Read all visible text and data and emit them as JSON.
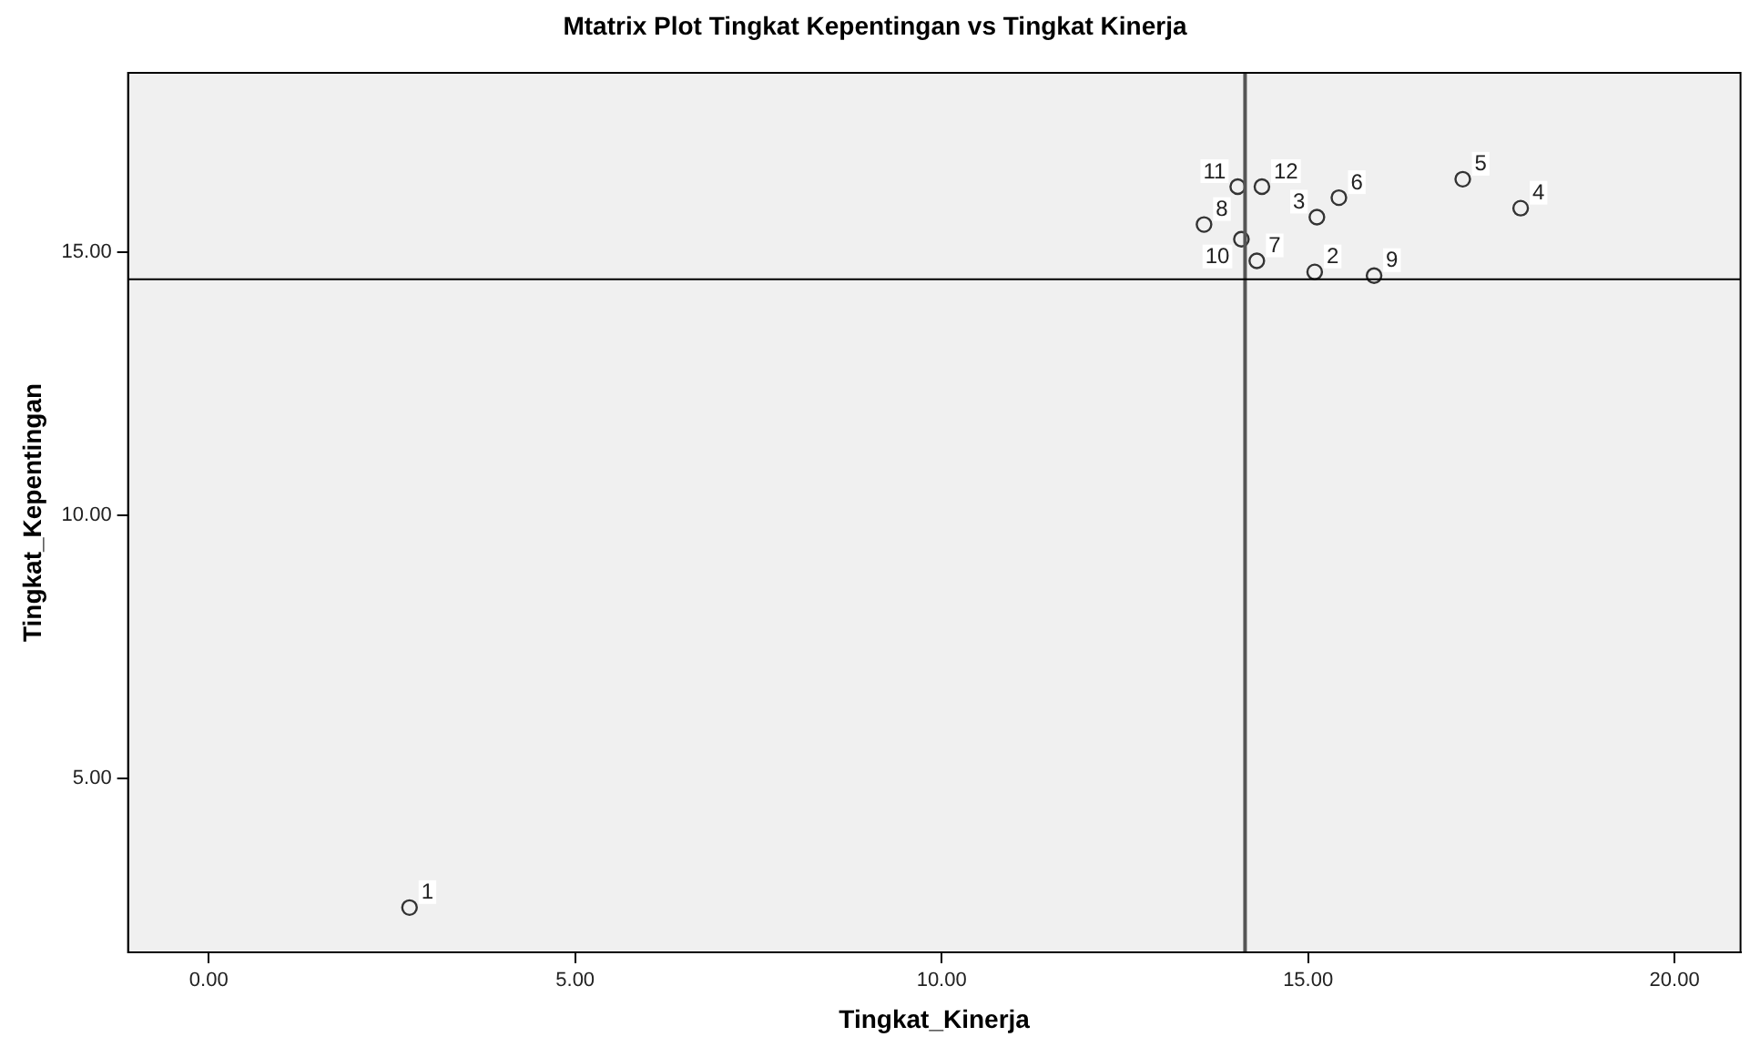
{
  "chart_data": {
    "type": "scatter",
    "title": "Mtatrix Plot Tingkat Kepentingan vs Tingkat Kinerja",
    "xlabel": "Tingkat_Kinerja",
    "ylabel": "Tingkat_Kepentingan",
    "series": [
      {
        "color": "#333333",
        "x": [
          2.74,
          15.09,
          15.12,
          17.9,
          17.11,
          15.42,
          14.3,
          13.58,
          15.9,
          14.09,
          14.04,
          14.37
        ],
        "values": [
          2.55,
          14.62,
          15.66,
          15.83,
          16.38,
          16.03,
          14.83,
          15.52,
          14.55,
          15.24,
          16.24,
          16.24
        ]
      }
    ],
    "annotations": [
      {
        "text": "1",
        "x": 2.74,
        "y": 2.55
      },
      {
        "text": "2",
        "x": 15.09,
        "y": 14.62
      },
      {
        "text": "3",
        "x": 15.12,
        "y": 15.66
      },
      {
        "text": "4",
        "x": 17.9,
        "y": 15.83
      },
      {
        "text": "5",
        "x": 17.11,
        "y": 16.38
      },
      {
        "text": "6",
        "x": 15.42,
        "y": 16.03
      },
      {
        "text": "7",
        "x": 14.3,
        "y": 14.83
      },
      {
        "text": "8",
        "x": 13.58,
        "y": 15.52
      },
      {
        "text": "9",
        "x": 15.9,
        "y": 14.55
      },
      {
        "text": "10",
        "x": 14.09,
        "y": 15.24
      },
      {
        "text": "11",
        "x": 14.04,
        "y": 16.24
      },
      {
        "text": "12",
        "x": 14.37,
        "y": 16.24
      }
    ],
    "xlim": [
      -1.1,
      20.9
    ],
    "ylim": [
      1.7,
      18.4
    ],
    "xticks": [
      {
        "value": 0,
        "label": "0.00"
      },
      {
        "value": 5,
        "label": "5.00"
      },
      {
        "value": 10,
        "label": "10.00"
      },
      {
        "value": 15,
        "label": "15.00"
      },
      {
        "value": 20,
        "label": "20.00"
      }
    ],
    "yticks": [
      {
        "value": 5,
        "label": "5.00"
      },
      {
        "value": 10,
        "label": "10.00"
      },
      {
        "value": 15,
        "label": "15.00"
      }
    ],
    "ref_lines": [
      {
        "axis": "x",
        "value": 14.14,
        "color": "#555555"
      },
      {
        "axis": "y",
        "value": 14.48,
        "color": "#000000"
      }
    ],
    "marker": "circle",
    "grid": false,
    "legend": false
  }
}
